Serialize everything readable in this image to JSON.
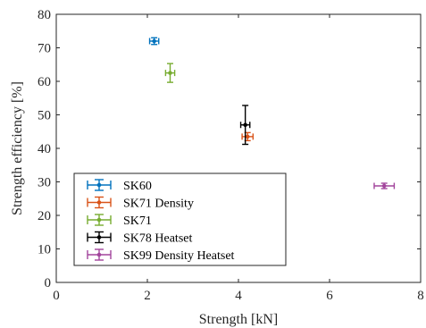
{
  "chart_data": {
    "type": "scatter",
    "title": "",
    "xlabel": "Strength [kN]",
    "ylabel": "Strength efficiency [%]",
    "xlim": [
      0,
      8
    ],
    "ylim": [
      0,
      80
    ],
    "xticks": [
      0,
      2,
      4,
      6,
      8
    ],
    "yticks": [
      0,
      10,
      20,
      30,
      40,
      50,
      60,
      70,
      80
    ],
    "grid": false,
    "legend_position": "bottom-left",
    "series": [
      {
        "name": "SK60",
        "color": "#0072BD",
        "x": 2.15,
        "y": 72.0,
        "xerr": 0.1,
        "yerr": 1.0
      },
      {
        "name": "SK71 Density",
        "color": "#D95319",
        "x": 4.2,
        "y": 43.5,
        "xerr": 0.12,
        "yerr": 1.2
      },
      {
        "name": "SK71",
        "color": "#77AC30",
        "x": 2.5,
        "y": 62.5,
        "xerr": 0.1,
        "yerr": 2.8
      },
      {
        "name": "SK78 Heatset",
        "color": "#000000",
        "x": 4.15,
        "y": 47.0,
        "xerr": 0.1,
        "yerr": 5.8
      },
      {
        "name": "SK99 Density Heatset",
        "color": "#A2459C",
        "x": 7.2,
        "y": 28.8,
        "xerr": 0.22,
        "yerr": 0.8
      }
    ]
  }
}
